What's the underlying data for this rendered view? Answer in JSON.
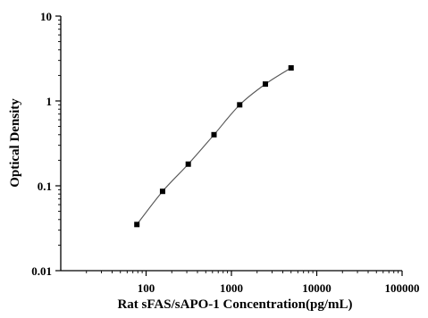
{
  "chart_data": {
    "type": "scatter",
    "xscale": "log",
    "yscale": "log",
    "xlim": [
      10,
      100000
    ],
    "ylim": [
      0.01,
      10
    ],
    "xlabel": "Rat sFAS/sAPO-1 Concentration(pg/mL)",
    "ylabel": "Optical Density",
    "xticks": [
      100,
      1000,
      10000,
      100000
    ],
    "xtick_labels": [
      "100",
      "1000",
      "10000",
      "100000"
    ],
    "yticks": [
      0.01,
      0.1,
      1,
      10
    ],
    "ytick_labels": [
      "0.01",
      "0.1",
      "1",
      "10"
    ],
    "series": [
      {
        "x": [
          78,
          156,
          312,
          625,
          1250,
          2500,
          5000
        ],
        "y": [
          0.035,
          0.086,
          0.18,
          0.4,
          0.9,
          1.58,
          2.45
        ],
        "marker": "square",
        "color": "#000000",
        "line_color": "#555555"
      }
    ],
    "grid": false
  }
}
